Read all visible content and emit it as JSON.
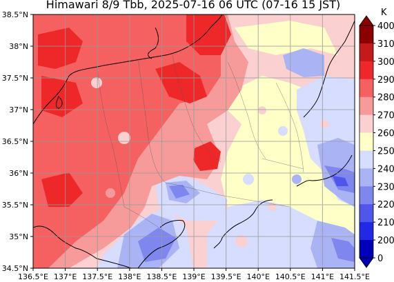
{
  "title": "Himawari 8/9 Tbb, 2025-07-16 06 UTC (07-16 15 JST)",
  "map": {
    "lon_range": [
      136.5,
      141.5
    ],
    "lat_range": [
      34.5,
      38.5
    ],
    "x_ticks": [
      "136.5°E",
      "137°E",
      "137.5°E",
      "138°E",
      "138.5°E",
      "139°E",
      "139.5°E",
      "140°E",
      "140.5°E",
      "141°E",
      "141.5°E"
    ],
    "y_ticks": [
      "38.5°N",
      "38°N",
      "37.5°N",
      "37°N",
      "36.5°N",
      "36°N",
      "35.5°N",
      "35°N",
      "34.5°N"
    ],
    "grid": true
  },
  "colorbar": {
    "unit": "K",
    "labels": [
      "400",
      "310",
      "300",
      "290",
      "280",
      "270",
      "260",
      "250",
      "240",
      "230",
      "220",
      "210",
      "200",
      "0"
    ],
    "colors": [
      "#8b0000",
      "#c51a1a",
      "#ee2828",
      "#f56060",
      "#f79a9a",
      "#fbd0d0",
      "#ffffc8",
      "#d6ddff",
      "#aab4f5",
      "#7f87ee",
      "#4e57ea",
      "#2129e6",
      "#0000b8"
    ]
  },
  "palette": {
    "hot": "#ee2828",
    "warm": "#f56060",
    "mild": "#f79a9a",
    "pale": "#fbd0d0",
    "cream": "#ffffc8",
    "lav": "#d6ddff",
    "lblue": "#aab4f5",
    "blue": "#7f87ee",
    "dblue": "#4e57ea"
  }
}
